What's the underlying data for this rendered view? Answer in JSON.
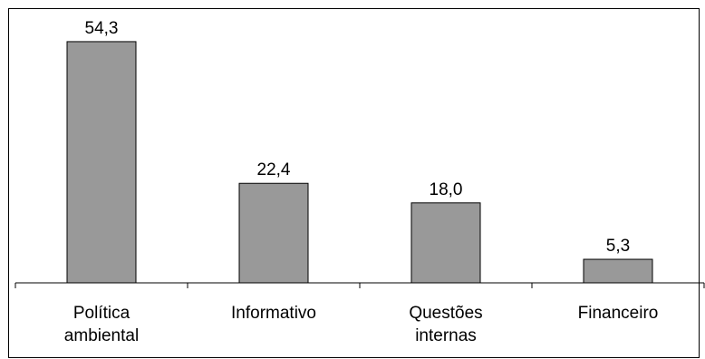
{
  "chart_data": {
    "type": "bar",
    "categories": [
      [
        "Política",
        "ambiental"
      ],
      [
        "Informativo"
      ],
      [
        "Questões",
        "internas"
      ],
      [
        "Financeiro"
      ]
    ],
    "values": [
      54.3,
      22.4,
      18.0,
      5.3
    ],
    "data_labels": [
      "54,3",
      "22,4",
      "18,0",
      "5,3"
    ],
    "title": "",
    "xlabel": "",
    "ylabel": "",
    "ylim": [
      0,
      60
    ],
    "grid": false,
    "legend": "none",
    "bar_color": "#999999",
    "bar_edge_color": "#000000"
  }
}
